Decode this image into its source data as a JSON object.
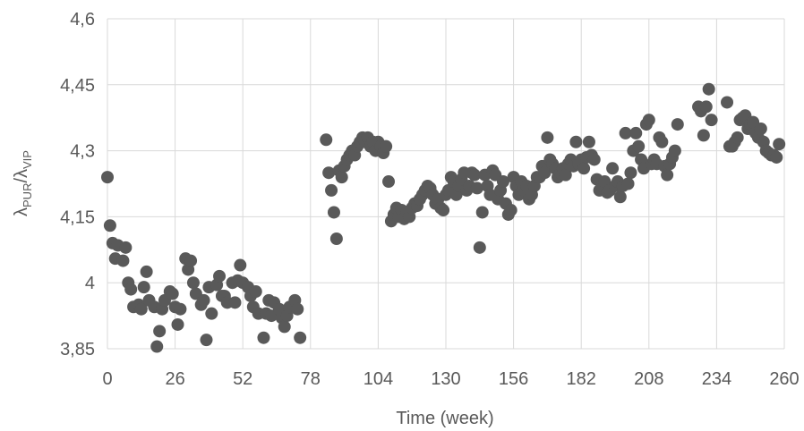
{
  "chart_data": {
    "type": "scatter",
    "xlabel": "Time (week)",
    "ylabel": {
      "symbol": "λ",
      "sub1": "PUR",
      "slash": "/λ",
      "sub2": "VIP"
    },
    "color": "#595959",
    "grid": true,
    "xlim": [
      0,
      260
    ],
    "xticks": [
      0,
      26,
      52,
      78,
      104,
      130,
      156,
      182,
      208,
      234,
      260
    ],
    "ylim": [
      3.85,
      4.6
    ],
    "yticks": [
      {
        "value": 3.85,
        "label": "3,85"
      },
      4,
      {
        "value": 4.15,
        "label": "4,15"
      },
      {
        "value": 4.3,
        "label": "4,3"
      },
      {
        "value": 4.45,
        "label": "4,45"
      },
      {
        "value": 4.6,
        "label": "4,6"
      }
    ],
    "x": [
      0,
      1,
      2,
      3,
      4,
      6,
      7,
      8,
      9,
      10,
      12,
      13,
      14,
      15,
      16,
      18,
      19,
      20,
      21,
      22,
      24,
      25,
      26,
      27,
      28,
      30,
      31,
      32,
      33,
      34,
      36,
      37,
      38,
      39,
      40,
      42,
      43,
      44,
      45,
      46,
      48,
      49,
      50,
      51,
      52,
      54,
      55,
      56,
      57,
      58,
      60,
      61,
      62,
      63,
      64,
      66,
      67,
      68,
      69,
      70,
      72,
      73,
      74,
      84,
      85,
      86,
      87,
      88,
      89,
      90,
      91,
      92,
      93,
      94,
      95,
      96,
      97,
      98,
      99,
      100,
      101,
      102,
      103,
      104,
      105,
      106,
      107,
      108,
      109,
      110,
      111,
      112,
      113,
      114,
      115,
      116,
      117,
      118,
      119,
      120,
      121,
      122,
      123,
      124,
      125,
      126,
      127,
      128,
      129,
      130,
      131,
      132,
      133,
      134,
      135,
      136,
      137,
      138,
      139,
      140,
      141,
      142,
      143,
      144,
      145,
      146,
      147,
      148,
      149,
      150,
      151,
      152,
      153,
      154,
      155,
      156,
      157,
      158,
      159,
      160,
      161,
      162,
      163,
      164,
      165,
      166,
      167,
      168,
      169,
      170,
      171,
      172,
      173,
      174,
      175,
      176,
      177,
      178,
      179,
      180,
      181,
      182,
      183,
      184,
      185,
      186,
      187,
      188,
      189,
      190,
      191,
      192,
      193,
      194,
      195,
      196,
      197,
      198,
      199,
      200,
      201,
      202,
      203,
      204,
      205,
      206,
      207,
      208,
      209,
      210,
      211,
      212,
      213,
      214,
      215,
      216,
      217,
      218,
      219,
      227,
      228,
      229,
      230,
      231,
      232,
      238,
      239,
      240,
      241,
      242,
      243,
      244,
      245,
      246,
      247,
      248,
      249,
      250,
      251,
      252,
      253,
      254,
      255,
      256,
      257,
      258
    ],
    "values": [
      4.24,
      4.13,
      4.09,
      4.055,
      4.085,
      4.05,
      4.08,
      4.0,
      3.985,
      3.945,
      3.95,
      3.94,
      3.99,
      4.025,
      3.96,
      3.945,
      3.855,
      3.89,
      3.94,
      3.96,
      3.98,
      3.975,
      3.945,
      3.905,
      3.94,
      4.055,
      4.03,
      4.05,
      4.0,
      3.975,
      3.95,
      3.96,
      3.87,
      3.99,
      3.93,
      3.995,
      4.015,
      3.97,
      3.97,
      3.955,
      4.0,
      3.955,
      4.005,
      4.04,
      4.0,
      3.99,
      3.97,
      3.945,
      3.98,
      3.93,
      3.875,
      3.93,
      3.96,
      3.925,
      3.955,
      3.94,
      3.92,
      3.9,
      3.925,
      3.945,
      3.96,
      3.94,
      3.875,
      4.325,
      4.25,
      4.21,
      4.16,
      4.1,
      4.255,
      4.24,
      4.265,
      4.28,
      4.29,
      4.3,
      4.29,
      4.31,
      4.32,
      4.33,
      4.32,
      4.33,
      4.31,
      4.32,
      4.3,
      4.32,
      4.31,
      4.295,
      4.31,
      4.23,
      4.14,
      4.155,
      4.17,
      4.15,
      4.165,
      4.145,
      4.16,
      4.15,
      4.17,
      4.18,
      4.175,
      4.19,
      4.2,
      4.21,
      4.22,
      4.215,
      4.2,
      4.18,
      4.19,
      4.17,
      4.165,
      4.2,
      4.21,
      4.24,
      4.23,
      4.2,
      4.22,
      4.235,
      4.25,
      4.21,
      4.22,
      4.25,
      4.245,
      4.215,
      4.08,
      4.16,
      4.245,
      4.22,
      4.2,
      4.255,
      4.245,
      4.19,
      4.21,
      4.23,
      4.18,
      4.155,
      4.165,
      4.24,
      4.22,
      4.2,
      4.23,
      4.21,
      4.22,
      4.19,
      4.2,
      4.22,
      4.24,
      4.24,
      4.265,
      4.25,
      4.33,
      4.28,
      4.27,
      4.26,
      4.24,
      4.25,
      4.26,
      4.245,
      4.27,
      4.28,
      4.265,
      4.32,
      4.27,
      4.28,
      4.26,
      4.285,
      4.32,
      4.29,
      4.28,
      4.235,
      4.21,
      4.22,
      4.23,
      4.205,
      4.21,
      4.26,
      4.22,
      4.23,
      4.195,
      4.22,
      4.34,
      4.225,
      4.25,
      4.3,
      4.34,
      4.31,
      4.28,
      4.26,
      4.36,
      4.37,
      4.27,
      4.28,
      4.27,
      4.33,
      4.32,
      4.265,
      4.245,
      4.27,
      4.285,
      4.3,
      4.36,
      4.4,
      4.39,
      4.335,
      4.4,
      4.44,
      4.37,
      4.41,
      4.31,
      4.31,
      4.32,
      4.33,
      4.37,
      4.375,
      4.38,
      4.35,
      4.36,
      4.365,
      4.34,
      4.33,
      4.35,
      4.32,
      4.3,
      4.295,
      4.29,
      4.29,
      4.285,
      4.315
    ]
  }
}
